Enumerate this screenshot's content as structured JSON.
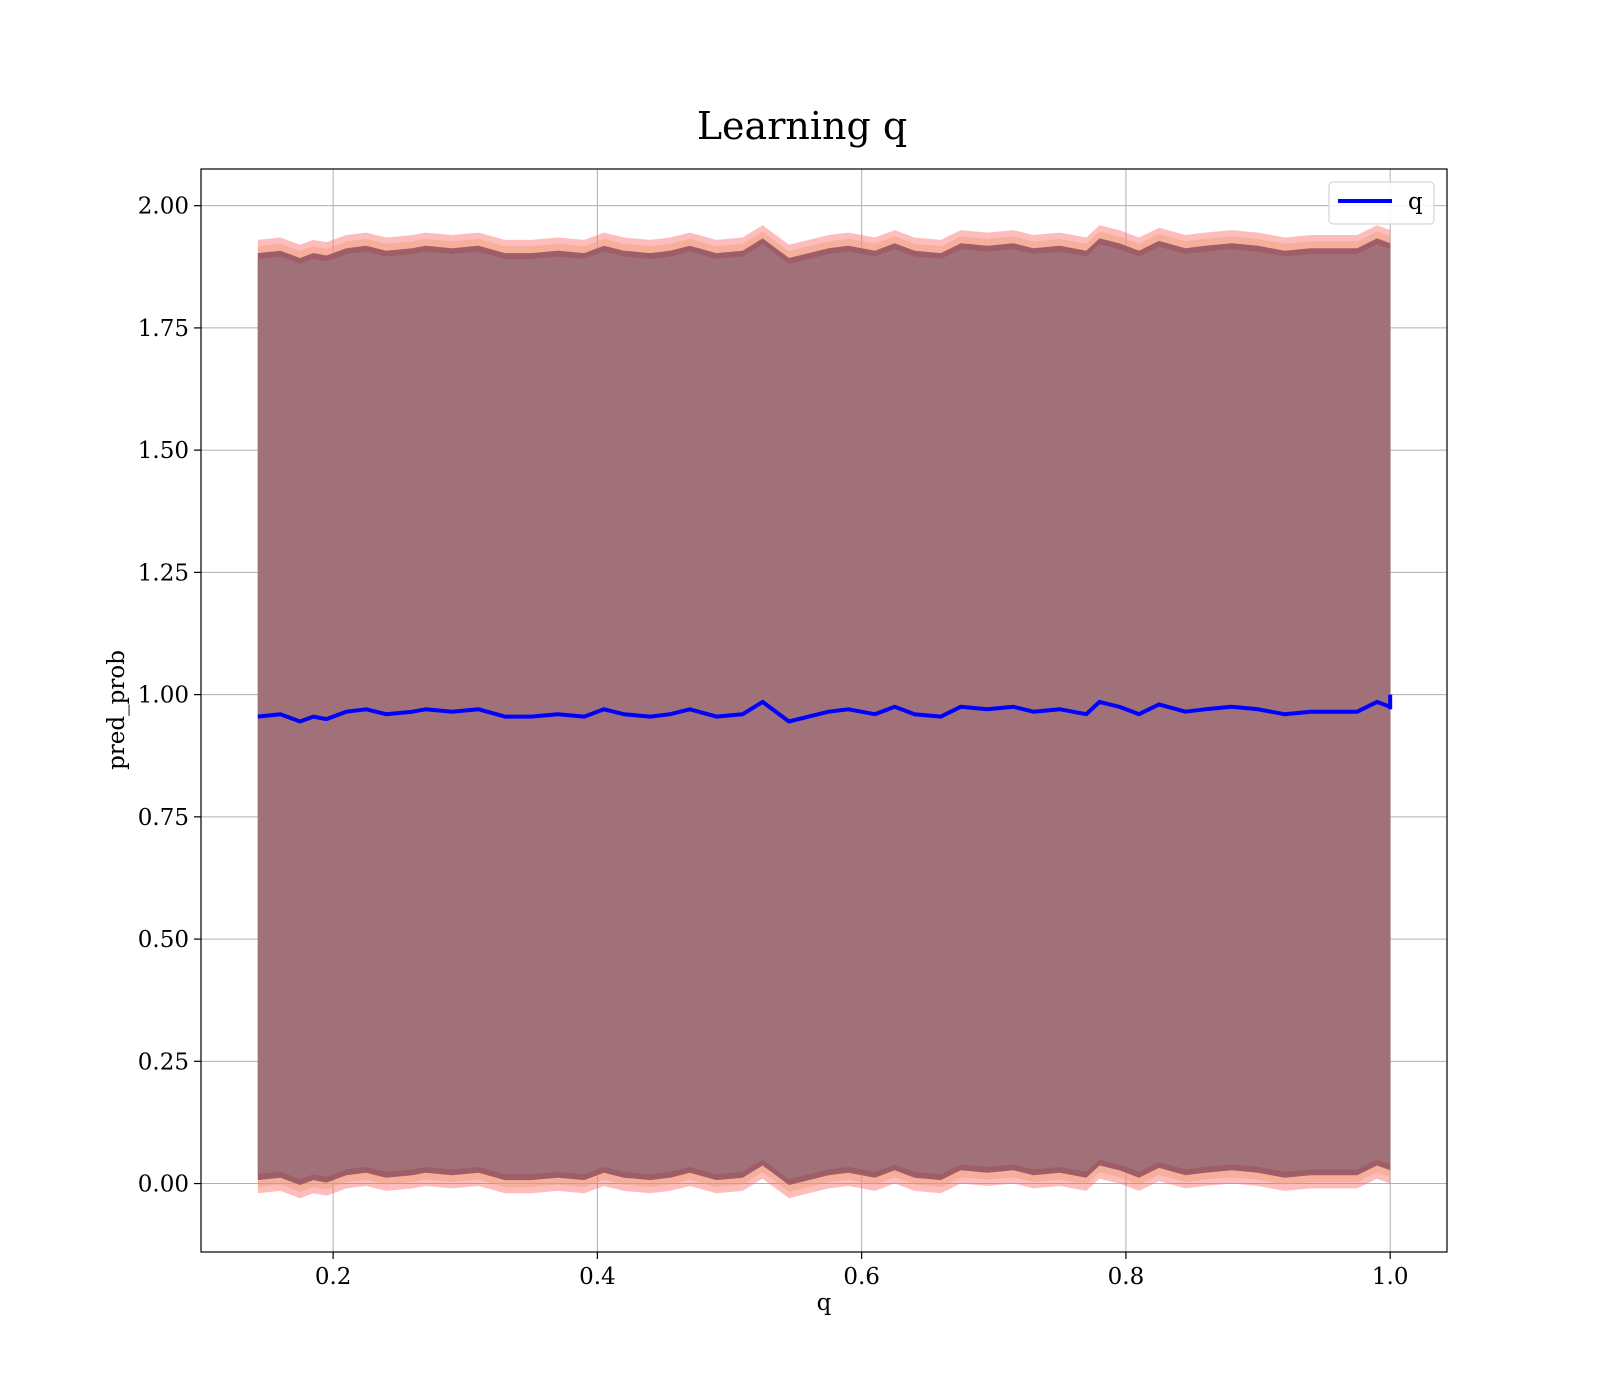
{
  "chart_data": {
    "type": "line",
    "title": "Learning q",
    "xlabel": "q",
    "ylabel": "pred_prob",
    "xlim": [
      0.1,
      1.043
    ],
    "ylim": [
      -0.14,
      2.075
    ],
    "x_ticks": [
      0.2,
      0.4,
      0.6,
      0.8,
      1.0
    ],
    "x_tick_labels": [
      "0.2",
      "0.4",
      "0.6",
      "0.8",
      "1.0"
    ],
    "y_ticks": [
      0.0,
      0.25,
      0.5,
      0.75,
      1.0,
      1.25,
      1.5,
      1.75,
      2.0
    ],
    "y_tick_labels": [
      "0.00",
      "0.25",
      "0.50",
      "0.75",
      "1.00",
      "1.25",
      "1.50",
      "1.75",
      "2.00"
    ],
    "grid": true,
    "legend": {
      "placement": "top-right",
      "entries": [
        {
          "name": "q",
          "color": "#0000ff"
        }
      ]
    },
    "series": [
      {
        "name": "q",
        "color": "#0000ff",
        "x": [
          0.143,
          0.16,
          0.175,
          0.185,
          0.195,
          0.21,
          0.225,
          0.24,
          0.26,
          0.27,
          0.29,
          0.31,
          0.33,
          0.35,
          0.37,
          0.39,
          0.405,
          0.42,
          0.44,
          0.455,
          0.47,
          0.49,
          0.51,
          0.525,
          0.545,
          0.56,
          0.575,
          0.59,
          0.61,
          0.625,
          0.64,
          0.66,
          0.675,
          0.695,
          0.715,
          0.73,
          0.75,
          0.77,
          0.78,
          0.795,
          0.81,
          0.825,
          0.845,
          0.86,
          0.88,
          0.9,
          0.92,
          0.94,
          0.96,
          0.975,
          0.99,
          1.0
        ],
        "values": [
          0.955,
          0.96,
          0.945,
          0.955,
          0.95,
          0.965,
          0.97,
          0.96,
          0.965,
          0.97,
          0.965,
          0.97,
          0.955,
          0.955,
          0.96,
          0.955,
          0.97,
          0.96,
          0.955,
          0.96,
          0.97,
          0.955,
          0.96,
          0.985,
          0.945,
          0.955,
          0.965,
          0.97,
          0.96,
          0.975,
          0.96,
          0.955,
          0.975,
          0.97,
          0.975,
          0.965,
          0.97,
          0.96,
          0.985,
          0.975,
          0.96,
          0.98,
          0.965,
          0.97,
          0.975,
          0.97,
          0.96,
          0.965,
          0.965,
          0.965,
          0.985,
          0.975
        ]
      }
    ],
    "bands": [
      {
        "role": "outer",
        "color": "#ff6b6b",
        "opacity": 0.45,
        "upper_offset": 0.975,
        "lower_offset": -0.975
      },
      {
        "role": "middle",
        "color": "#e8a070",
        "opacity": 0.45,
        "upper_offset": 0.962,
        "lower_offset": -0.962
      },
      {
        "role": "inner",
        "color": "#8a4a5a",
        "opacity": 0.8,
        "upper_offset": 0.948,
        "lower_offset": -0.948
      }
    ],
    "band_fill_color": "#a1717a"
  }
}
